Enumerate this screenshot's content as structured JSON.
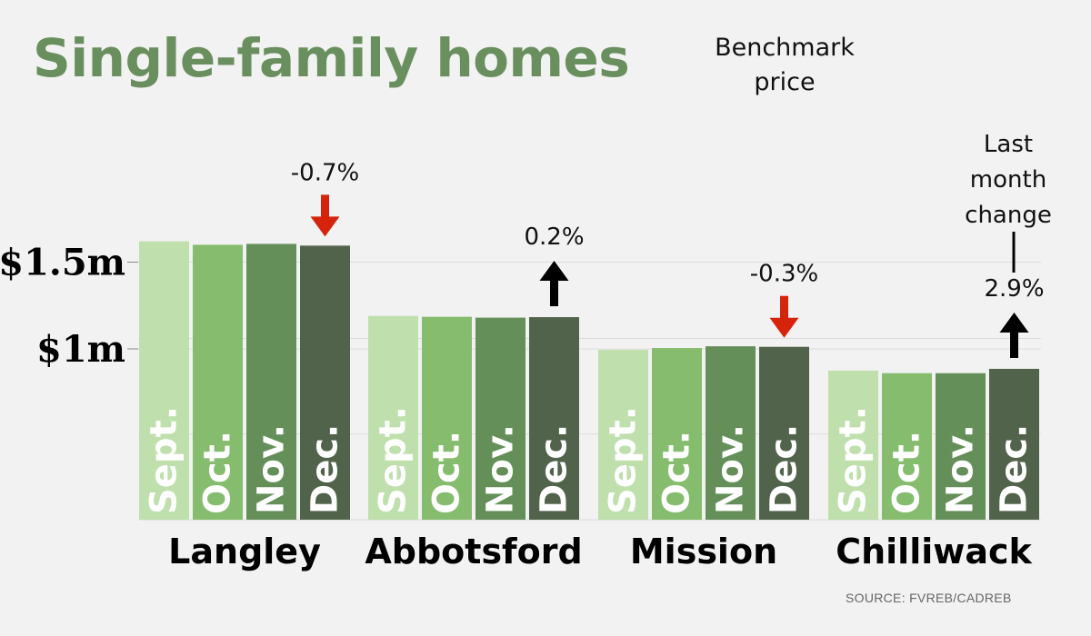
{
  "title": "Single-family homes",
  "legend_note": [
    "Benchmark",
    "price"
  ],
  "change_note": [
    "Last",
    "month",
    "change"
  ],
  "source": "SOURCE: FVREB/CADREB",
  "colors": {
    "months": [
      "#bfe0ac",
      "#86bc6e",
      "#648f59",
      "#52634b"
    ],
    "up_arrow": "#000000",
    "down_arrow": "#d6230c",
    "title": "#6a8f5e"
  },
  "chart_data": {
    "type": "bar",
    "title": "Single-family homes",
    "ylabel": "Benchmark price",
    "y_ticks": [
      {
        "value": 1000000,
        "label": "$1m"
      },
      {
        "value": 1500000,
        "label": "$1.5m"
      }
    ],
    "months": [
      "Sept.",
      "Oct.",
      "Nov.",
      "Dec."
    ],
    "series_name": "Benchmark price",
    "groups": [
      {
        "name": "Langley",
        "values": [
          1620000,
          1600000,
          1605000,
          1595000
        ],
        "change": "-0.7%",
        "direction": "down"
      },
      {
        "name": "Abbotsford",
        "values": [
          1190000,
          1185000,
          1180000,
          1183000
        ],
        "change": "0.2%",
        "direction": "up"
      },
      {
        "name": "Mission",
        "values": [
          995000,
          1005000,
          1015000,
          1012000
        ],
        "change": "-0.3%",
        "direction": "down"
      },
      {
        "name": "Chilliwack",
        "values": [
          875000,
          860000,
          860000,
          885000
        ],
        "change": "2.9%",
        "direction": "up"
      }
    ]
  }
}
